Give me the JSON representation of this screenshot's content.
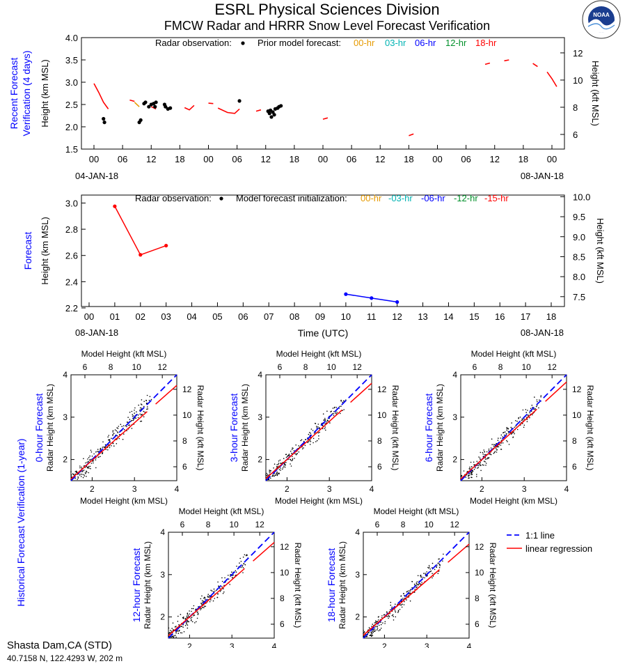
{
  "header": {
    "title": "ESRL Physical Sciences Division",
    "subtitle": "FMCW Radar and HRRR Snow Level Forecast Verification",
    "logo_text": "NOAA"
  },
  "footer": {
    "station": "Shasta Dam,CA (STD)",
    "coords": "40.7158 N, 122.4293 W, 202 m"
  },
  "colors": {
    "hr00": "#e69a00",
    "hr03": "#00b3b3",
    "hr06": "#0000ff",
    "hr12": "#00902a",
    "hr15": "#ff0000",
    "hr18": "#ff0000",
    "label_blue": "#0000ff",
    "oneone": "#0000ff",
    "regression": "#ff0000"
  },
  "chart_data": [
    {
      "type": "line",
      "side_label": [
        "Recent Forecast",
        "Verification (4 days)"
      ],
      "ylabel": "Height (km MSL)",
      "y2label": "Height (kft MSL)",
      "ylim": [
        1.5,
        4.0
      ],
      "yticks": [
        "1.5",
        "2.0",
        "2.5",
        "3.0",
        "3.5",
        "4.0"
      ],
      "y2ticks": [
        "6",
        "8",
        "10",
        "12"
      ],
      "xticks": [
        "00",
        "06",
        "12",
        "18",
        "00",
        "06",
        "12",
        "18",
        "00",
        "06",
        "12",
        "18",
        "00",
        "06",
        "12",
        "18",
        "00"
      ],
      "date_left": "04-JAN-18",
      "date_right": "08-JAN-18",
      "legend": {
        "obs_label": "Radar observation:",
        "prior_label": "Prior model forecast:",
        "entries": [
          "00-hr",
          "03-hr",
          "06-hr",
          "12-hr",
          "18-hr"
        ]
      },
      "series": [
        {
          "name": "18-hr",
          "color": "#ff0000",
          "segments": [
            [
              [
                0,
                2.97
              ],
              [
                1,
                2.77
              ],
              [
                2,
                2.55
              ],
              [
                3,
                2.4
              ]
            ],
            [
              [
                7.5,
                2.6
              ],
              [
                8.5,
                2.57
              ]
            ],
            [
              [
                12,
                2.45
              ],
              [
                13,
                2.4
              ]
            ],
            [
              [
                19,
                2.43
              ],
              [
                20,
                2.38
              ],
              [
                21,
                2.48
              ]
            ],
            [
              [
                24,
                2.53
              ],
              [
                25,
                2.52
              ]
            ],
            [
              [
                26,
                2.42
              ],
              [
                28,
                2.32
              ],
              [
                29.5,
                2.3
              ],
              [
                30.5,
                2.4
              ]
            ],
            [
              [
                34,
                2.35
              ],
              [
                35,
                2.38
              ]
            ],
            [
              [
                48,
                2.17
              ],
              [
                49,
                2.2
              ]
            ],
            [
              [
                66,
                1.8
              ],
              [
                67,
                1.84
              ]
            ],
            [
              [
                82,
                3.4
              ],
              [
                83,
                3.43
              ]
            ],
            [
              [
                86,
                3.48
              ],
              [
                87,
                3.5
              ]
            ],
            [
              [
                92,
                3.42
              ],
              [
                93,
                3.35
              ]
            ],
            [
              [
                95,
                3.23
              ],
              [
                96,
                3.08
              ],
              [
                97,
                2.9
              ]
            ]
          ]
        },
        {
          "name": "00-hr",
          "color": "#e69a00",
          "segments": [
            [
              [
                8.5,
                2.55
              ],
              [
                9.5,
                2.45
              ]
            ]
          ]
        }
      ],
      "observations": [
        [
          2,
          2.18
        ],
        [
          2.2,
          2.1
        ],
        [
          9.5,
          2.1
        ],
        [
          9.8,
          2.15
        ],
        [
          10.5,
          2.52
        ],
        [
          10.8,
          2.55
        ],
        [
          11.5,
          2.45
        ],
        [
          12,
          2.5
        ],
        [
          12.5,
          2.52
        ],
        [
          12.8,
          2.45
        ],
        [
          13,
          2.55
        ],
        [
          14.8,
          2.5
        ],
        [
          15,
          2.45
        ],
        [
          15.5,
          2.4
        ],
        [
          16,
          2.42
        ],
        [
          30.5,
          2.58
        ],
        [
          36.5,
          2.35
        ],
        [
          36.8,
          2.3
        ],
        [
          37,
          2.37
        ],
        [
          37.2,
          2.22
        ],
        [
          37.5,
          2.33
        ],
        [
          37.8,
          2.27
        ],
        [
          38,
          2.4
        ],
        [
          38.5,
          2.42
        ],
        [
          38.8,
          2.45
        ],
        [
          39.2,
          2.47
        ]
      ]
    },
    {
      "type": "line",
      "side_label": [
        "Forecast"
      ],
      "xlabel": "Time (UTC)",
      "ylabel": "Height (km MSL)",
      "y2label": "Height (kft MSL)",
      "ylim": [
        2.2,
        3.05
      ],
      "yticks": [
        "2.2",
        "2.4",
        "2.6",
        "2.8",
        "3.0"
      ],
      "y2ticks": [
        "7.5",
        "8.0",
        "8.5",
        "9.0",
        "9.5",
        "10.0"
      ],
      "xticks": [
        "00",
        "01",
        "02",
        "03",
        "04",
        "05",
        "06",
        "07",
        "08",
        "09",
        "10",
        "11",
        "12",
        "13",
        "14",
        "15",
        "16",
        "17",
        "18"
      ],
      "date_left": "08-JAN-18",
      "date_right": "08-JAN-18",
      "legend": {
        "obs_label": "Radar observation:",
        "init_label": "Model forecast initialization:",
        "entries": [
          "00-hr",
          "-03-hr",
          "-06-hr",
          "-12-hr",
          "-15-hr"
        ]
      },
      "series": [
        {
          "name": "-15-hr",
          "color": "#ff0000",
          "x": [
            1,
            2,
            3
          ],
          "y": [
            2.975,
            2.605,
            2.675
          ]
        },
        {
          "name": "-06-hr",
          "color": "#0000ff",
          "x": [
            10,
            11,
            12
          ],
          "y": [
            2.305,
            2.275,
            2.245
          ]
        }
      ]
    },
    {
      "type": "scatter",
      "side_label": "Historical Forecast Verification (1-year)",
      "xlabel": "Model Height (km MSL)",
      "ylabel": "Radar Height (km MSL)",
      "x2label": "Model Height (kft MSL)",
      "y2label": "Radar Height (kft MSL)",
      "xlim": [
        1.5,
        4.0
      ],
      "ylim": [
        1.5,
        4.0
      ],
      "ticks": [
        "2",
        "3",
        "4"
      ],
      "kft_ticks": [
        "6",
        "8",
        "10",
        "12"
      ],
      "legend": {
        "oneone": "1:1 line",
        "regression": "linear regression"
      },
      "panels": [
        {
          "title": "0-hour Forecast",
          "regression": [
            [
              1.5,
              1.54
            ],
            [
              4.0,
              3.75
            ]
          ]
        },
        {
          "title": "3-hour Forecast",
          "regression": [
            [
              1.5,
              1.55
            ],
            [
              4.0,
              3.8
            ]
          ]
        },
        {
          "title": "6-hour Forecast",
          "regression": [
            [
              1.5,
              1.54
            ],
            [
              4.0,
              3.83
            ]
          ]
        },
        {
          "title": "12-hour Forecast",
          "regression": [
            [
              1.5,
              1.56
            ],
            [
              4.0,
              3.76
            ]
          ]
        },
        {
          "title": "18-hour Forecast",
          "regression": [
            [
              1.5,
              1.57
            ],
            [
              4.0,
              3.72
            ]
          ]
        }
      ]
    }
  ]
}
